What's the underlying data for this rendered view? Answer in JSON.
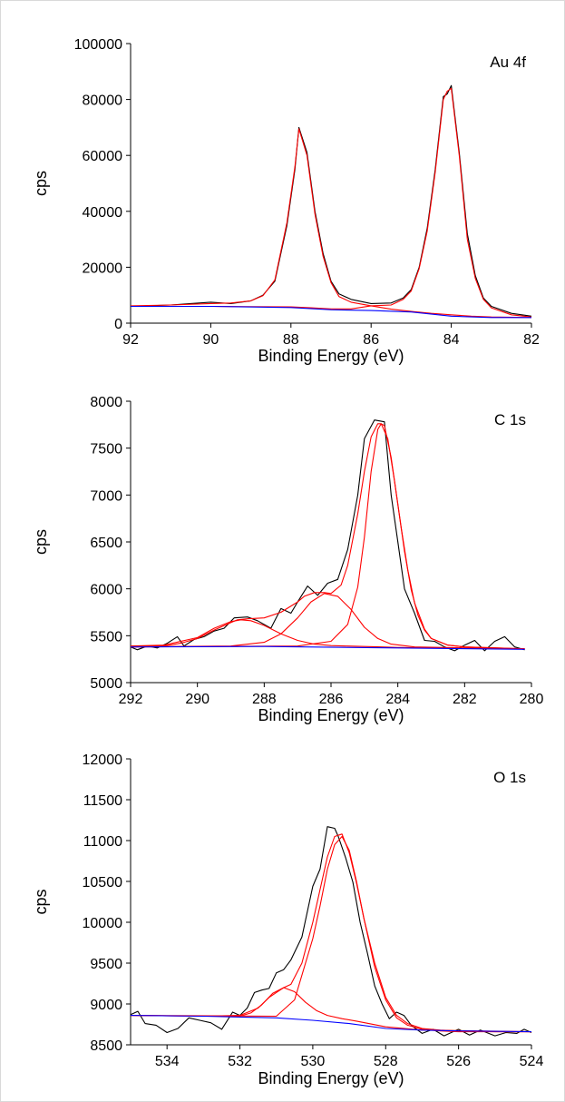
{
  "chart_data": [
    {
      "type": "line",
      "label": "Au 4f",
      "xlabel": "Binding Energy (eV)",
      "ylabel": "cps",
      "xlim": [
        92,
        82
      ],
      "ylim": [
        0,
        100000
      ],
      "xticks": [
        92,
        90,
        88,
        86,
        84,
        82
      ],
      "yticks": [
        0,
        20000,
        40000,
        60000,
        80000,
        100000
      ],
      "xtick_labels": [
        "92",
        "90",
        "88",
        "86",
        "84",
        "82"
      ],
      "ytick_labels": [
        "0",
        "20000",
        "40000",
        "60000",
        "80000",
        "100000"
      ],
      "series": [
        {
          "color": "#000000",
          "x": [
            92,
            91,
            90.5,
            90,
            89.5,
            89,
            88.7,
            88.4,
            88.1,
            87.9,
            87.8,
            87.6,
            87.4,
            87.2,
            87,
            86.8,
            86.5,
            86,
            85.5,
            85.2,
            85,
            84.8,
            84.6,
            84.4,
            84.2,
            84.1,
            84,
            83.8,
            83.6,
            83.4,
            83.2,
            83,
            82.5,
            82
          ],
          "y": [
            6000,
            6500,
            7000,
            7500,
            7000,
            8000,
            10000,
            15000,
            35000,
            55000,
            70000,
            61000,
            40000,
            25000,
            15000,
            10500,
            8500,
            7000,
            7200,
            9000,
            12000,
            20000,
            34000,
            55000,
            81000,
            82000,
            85000,
            61000,
            32000,
            17000,
            9000,
            6000,
            3500,
            2500
          ]
        },
        {
          "color": "#ff0000",
          "x": [
            92,
            91,
            90,
            89.5,
            89,
            88.7,
            88.4,
            88.1,
            87.9,
            87.8,
            87.6,
            87.4,
            87.2,
            87,
            86.8,
            86.5,
            86,
            85.5,
            85.2,
            85,
            84.8,
            84.6,
            84.4,
            84.2,
            84.1,
            84,
            83.8,
            83.6,
            83.4,
            83.2,
            83,
            82.5,
            82
          ],
          "y": [
            6200,
            6500,
            7000,
            7200,
            8000,
            9800,
            15500,
            36000,
            56000,
            69500,
            60000,
            39000,
            24000,
            14500,
            9500,
            7500,
            6200,
            6500,
            8500,
            11500,
            19500,
            33000,
            54000,
            80000,
            83000,
            84000,
            60000,
            30000,
            16000,
            8500,
            5500,
            3000,
            2200
          ]
        },
        {
          "color": "#ff0000",
          "x": [
            92,
            90,
            88,
            87.5,
            87,
            86.5,
            86,
            85.5,
            85,
            84.5,
            84,
            83.5,
            83,
            82
          ],
          "y": [
            6000,
            6000,
            5800,
            5500,
            5100,
            5100,
            6200,
            5000,
            4200,
            3500,
            3000,
            2500,
            2200,
            2000
          ]
        },
        {
          "color": "#0000ff",
          "x": [
            92,
            90,
            88,
            87,
            86,
            85,
            84,
            83,
            82
          ],
          "y": [
            6000,
            6000,
            5600,
            4800,
            4500,
            4000,
            2500,
            2000,
            2000
          ]
        }
      ]
    },
    {
      "type": "line",
      "label": "C 1s",
      "xlabel": "Binding Energy (eV)",
      "ylabel": "cps",
      "xlim": [
        292,
        280
      ],
      "ylim": [
        5000,
        8000
      ],
      "xticks": [
        292,
        290,
        288,
        286,
        284,
        282,
        280
      ],
      "yticks": [
        5000,
        5500,
        6000,
        6500,
        7000,
        7500,
        8000
      ],
      "xtick_labels": [
        "292",
        "290",
        "288",
        "286",
        "284",
        "282",
        "280"
      ],
      "ytick_labels": [
        "5000",
        "5500",
        "6000",
        "6500",
        "7000",
        "7500",
        "8000"
      ],
      "series": [
        {
          "color": "#000000",
          "x": [
            292,
            291.8,
            291.5,
            291.2,
            290.9,
            290.6,
            290.4,
            290.1,
            289.8,
            289.5,
            289.2,
            288.9,
            288.5,
            288.2,
            287.8,
            287.5,
            287.2,
            287,
            286.7,
            286.4,
            286.1,
            285.8,
            285.5,
            285.2,
            285,
            284.7,
            284.4,
            284.2,
            284,
            283.8,
            283.5,
            283.2,
            282.9,
            282.6,
            282.3,
            282,
            281.7,
            281.4,
            281.1,
            280.8,
            280.5,
            280.2
          ],
          "y": [
            5380,
            5350,
            5390,
            5370,
            5420,
            5490,
            5390,
            5460,
            5490,
            5550,
            5580,
            5690,
            5700,
            5660,
            5580,
            5790,
            5740,
            5860,
            6030,
            5930,
            6060,
            6100,
            6420,
            7000,
            7600,
            7800,
            7780,
            7000,
            6500,
            6000,
            5740,
            5450,
            5440,
            5380,
            5340,
            5400,
            5450,
            5340,
            5440,
            5490,
            5380,
            5350
          ]
        },
        {
          "color": "#ff0000",
          "x": [
            292,
            291,
            290.5,
            290,
            289.5,
            289,
            288.8,
            288.5,
            288,
            287.5,
            287,
            286.8,
            286.5,
            286.2,
            286,
            285.7,
            285.5,
            285.2,
            285,
            284.8,
            284.6,
            284.5,
            284.3,
            284.1,
            283.9,
            283.7,
            283.5,
            283.2,
            283,
            282.5,
            282,
            281,
            280.2
          ],
          "y": [
            5390,
            5390,
            5420,
            5470,
            5560,
            5640,
            5670,
            5680,
            5690,
            5750,
            5860,
            5920,
            5960,
            5960,
            5950,
            6040,
            6250,
            6800,
            7250,
            7620,
            7760,
            7760,
            7600,
            7150,
            6650,
            6200,
            5850,
            5570,
            5470,
            5400,
            5380,
            5370,
            5360
          ]
        },
        {
          "color": "#ff0000",
          "x": [
            292,
            291,
            290,
            289.5,
            289,
            288.7,
            288.4,
            288,
            287.5,
            287,
            286.5,
            286,
            285.5,
            285,
            284.5,
            284,
            283,
            282,
            280.2
          ],
          "y": [
            5390,
            5400,
            5480,
            5580,
            5650,
            5670,
            5660,
            5610,
            5520,
            5450,
            5410,
            5395,
            5390,
            5385,
            5380,
            5375,
            5370,
            5365,
            5360
          ]
        },
        {
          "color": "#ff0000",
          "x": [
            292,
            289,
            288,
            287.5,
            287,
            286.6,
            286.2,
            285.8,
            285.4,
            285,
            284.6,
            284.2,
            283.5,
            282,
            280.2
          ],
          "y": [
            5380,
            5390,
            5430,
            5520,
            5690,
            5860,
            5950,
            5920,
            5780,
            5590,
            5470,
            5410,
            5380,
            5370,
            5360
          ]
        },
        {
          "color": "#ff0000",
          "x": [
            292,
            287,
            286,
            285.5,
            285.2,
            285,
            284.8,
            284.6,
            284.5,
            284.4,
            284.2,
            284,
            283.8,
            283.6,
            283.4,
            283.2,
            283,
            282.5,
            282,
            280.2
          ],
          "y": [
            5380,
            5390,
            5440,
            5620,
            6020,
            6550,
            7250,
            7700,
            7760,
            7740,
            7400,
            6900,
            6400,
            5990,
            5720,
            5560,
            5470,
            5400,
            5380,
            5360
          ]
        },
        {
          "color": "#0000ff",
          "x": [
            292,
            288,
            284,
            280.2
          ],
          "y": [
            5380,
            5385,
            5370,
            5355
          ]
        }
      ]
    },
    {
      "type": "line",
      "label": "O 1s",
      "xlabel": "Binding Energy (eV)",
      "ylabel": "cps",
      "xlim": [
        535,
        524
      ],
      "ylim": [
        8500,
        12000
      ],
      "xticks": [
        534,
        532,
        530,
        528,
        526,
        524
      ],
      "yticks": [
        8500,
        9000,
        9500,
        10000,
        10500,
        11000,
        11500,
        12000
      ],
      "xtick_labels": [
        "534",
        "532",
        "530",
        "528",
        "526",
        "524"
      ],
      "ytick_labels": [
        "8500",
        "9000",
        "9500",
        "10000",
        "10500",
        "11000",
        "11500",
        "12000"
      ],
      "series": [
        {
          "color": "#000000",
          "x": [
            535,
            534.8,
            534.6,
            534.3,
            534,
            533.7,
            533.4,
            533.1,
            532.8,
            532.5,
            532.2,
            532,
            531.8,
            531.6,
            531.4,
            531.2,
            531,
            530.8,
            530.6,
            530.3,
            530,
            529.8,
            529.6,
            529.4,
            529.3,
            529.1,
            528.9,
            528.7,
            528.5,
            528.3,
            528.1,
            527.9,
            527.7,
            527.5,
            527.3,
            527,
            526.7,
            526.4,
            526,
            525.7,
            525.4,
            525,
            524.7,
            524.4,
            524.2,
            524
          ],
          "y": [
            8870,
            8910,
            8760,
            8740,
            8650,
            8700,
            8830,
            8800,
            8770,
            8690,
            8900,
            8860,
            8950,
            9140,
            9170,
            9190,
            9380,
            9420,
            9540,
            9820,
            10440,
            10650,
            11170,
            11150,
            11050,
            10790,
            10490,
            10000,
            9620,
            9220,
            9000,
            8820,
            8900,
            8860,
            8740,
            8640,
            8690,
            8610,
            8690,
            8620,
            8680,
            8610,
            8650,
            8640,
            8690,
            8650
          ]
        },
        {
          "color": "#ff0000",
          "x": [
            535,
            533,
            532,
            531.5,
            531.2,
            531,
            530.8,
            530.6,
            530.3,
            530,
            529.8,
            529.6,
            529.4,
            529.2,
            529,
            528.8,
            528.6,
            528.3,
            528,
            527.7,
            527.4,
            527,
            526.5,
            526,
            525,
            524
          ],
          "y": [
            8860,
            8850,
            8860,
            8950,
            9080,
            9140,
            9200,
            9240,
            9500,
            10000,
            10400,
            10800,
            11050,
            11080,
            10850,
            10480,
            10050,
            9500,
            9080,
            8860,
            8760,
            8700,
            8680,
            8670,
            8660,
            8660
          ]
        },
        {
          "color": "#ff0000",
          "x": [
            535,
            533,
            532,
            531.7,
            531.4,
            531.1,
            530.8,
            530.5,
            530.2,
            529.9,
            529.6,
            529.2,
            528.8,
            528,
            527,
            524
          ],
          "y": [
            8860,
            8850,
            8850,
            8890,
            8990,
            9130,
            9200,
            9150,
            9020,
            8920,
            8860,
            8820,
            8790,
            8720,
            8680,
            8660
          ]
        },
        {
          "color": "#ff0000",
          "x": [
            535,
            531,
            530.5,
            530,
            529.8,
            529.6,
            529.4,
            529.2,
            529,
            528.8,
            528.6,
            528.3,
            528,
            527.7,
            527.4,
            527,
            526.5,
            526,
            524
          ],
          "y": [
            8860,
            8850,
            9050,
            9800,
            10200,
            10650,
            10950,
            11050,
            10880,
            10500,
            10050,
            9450,
            9050,
            8830,
            8740,
            8690,
            8670,
            8660,
            8660
          ]
        },
        {
          "color": "#0000ff",
          "x": [
            535,
            533,
            531,
            530,
            529,
            528,
            527,
            526,
            524
          ],
          "y": [
            8860,
            8850,
            8830,
            8800,
            8760,
            8700,
            8680,
            8670,
            8660
          ]
        }
      ]
    }
  ]
}
